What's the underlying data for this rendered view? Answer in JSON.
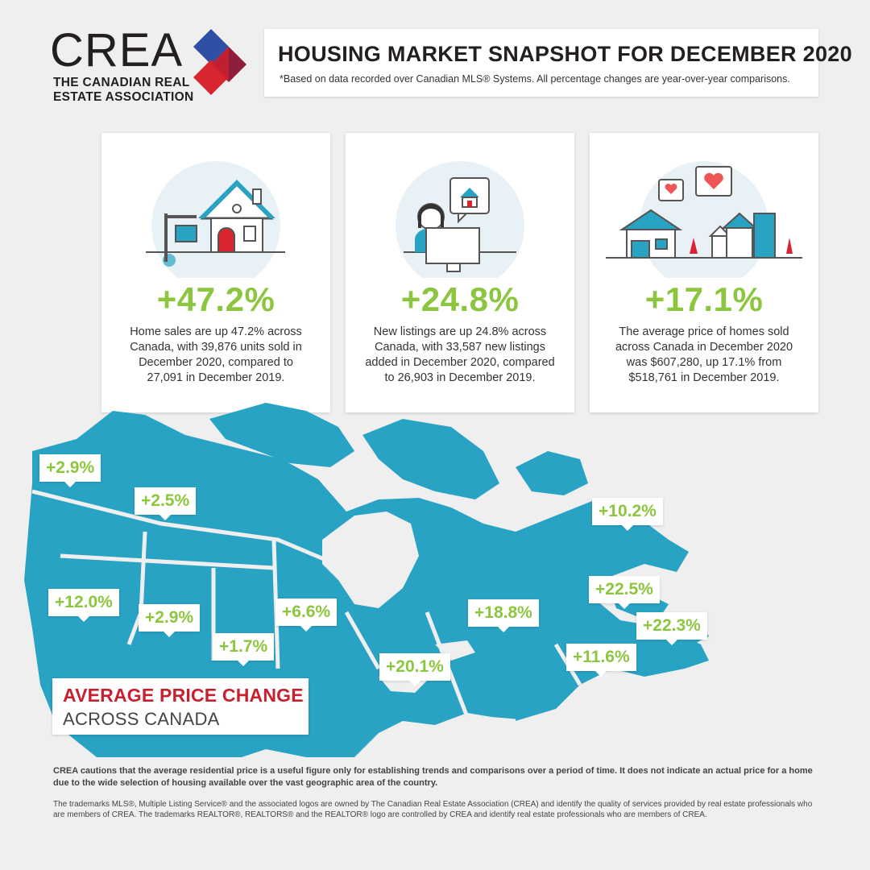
{
  "logo": {
    "word": "CREA",
    "subtitle_line1": "THE CANADIAN REAL",
    "subtitle_line2": "ESTATE ASSOCIATION"
  },
  "header": {
    "title": "HOUSING MARKET SNAPSHOT FOR DECEMBER 2020",
    "subtitle": "*Based on data recorded over Canadian MLS® Systems. All percentage changes are year-over-year comparisons."
  },
  "cards": [
    {
      "percent": "+47.2%",
      "text": "Home sales are up 47.2% across Canada, with 39,876 units sold in December 2020, compared to 27,091 in December 2019."
    },
    {
      "percent": "+24.8%",
      "text": "New listings are up 24.8% across Canada, with 33,587 new listings added in December 2020, compared to 26,903 in December 2019."
    },
    {
      "percent": "+17.1%",
      "text": "The average price of homes sold across Canada in December 2020 was $607,280, up 17.1% from $518,761 in December 2019."
    }
  ],
  "regions": [
    {
      "label": "+2.9%"
    },
    {
      "label": "+2.5%"
    },
    {
      "label": "+10.2%"
    },
    {
      "label": "+12.0%"
    },
    {
      "label": "+2.9%"
    },
    {
      "label": "+1.7%"
    },
    {
      "label": "+6.6%"
    },
    {
      "label": "+18.8%"
    },
    {
      "label": "+22.5%"
    },
    {
      "label": "+22.3%"
    },
    {
      "label": "+11.6%"
    },
    {
      "label": "+20.1%"
    }
  ],
  "map_legend": {
    "title": "AVERAGE PRICE CHANGE",
    "subtitle": "ACROSS CANADA"
  },
  "footer": {
    "caution": "CREA cautions that the average residential price is a useful figure only for establishing trends and comparisons over a period of time. It does not indicate an actual price for a home due to the wide selection of housing available over the vast geographic area of the country.",
    "trademark": "The trademarks MLS®, Multiple Listing Service® and the associated logos are owned by The Canadian Real Estate Association (CREA) and identify the quality of services provided by real estate professionals who are members of CREA. The trademarks REALTOR®, REALTORS® and the REALTOR® logo are controlled by CREA and identify real estate professionals who are members of CREA."
  },
  "colors": {
    "accent_green": "#8cc63f",
    "map_blue": "#29a3c4",
    "brand_red": "#c8202f",
    "brand_blue": "#2e4fa3",
    "brand_maroon": "#8e1e3a"
  }
}
